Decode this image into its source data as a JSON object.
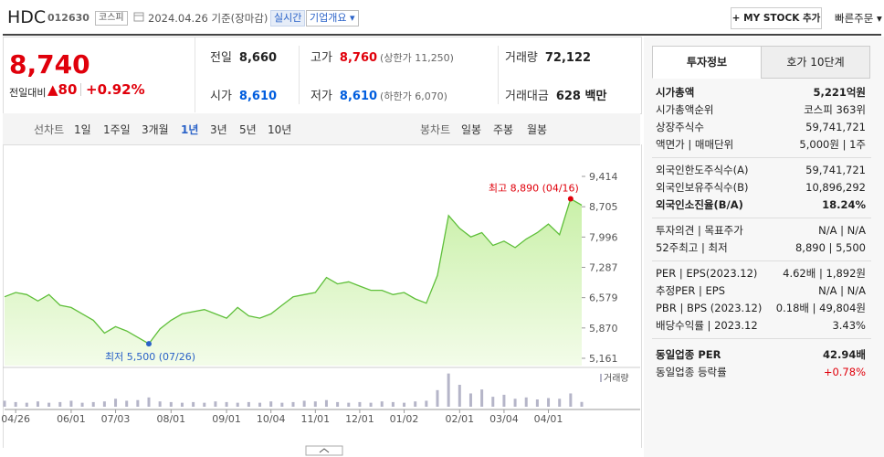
{
  "header": {
    "name": "HDC",
    "code": "012630",
    "market": "코스피",
    "date": "2024.04.26 기준(장마감)",
    "realtime": "실시간",
    "overview": "기업개요 ▾",
    "mystock": "+ MY STOCK 추가",
    "quick_order": "빠른주문 ▾"
  },
  "quote": {
    "price": "8,740",
    "change_label": "전일대비",
    "change": "▲80",
    "change_pct": "+0.92%",
    "rows": [
      [
        {
          "label": "전일",
          "value": "8,660"
        },
        {
          "label": "고가",
          "value": "8,760",
          "extra": "(상한가 11,250)"
        },
        {
          "label": "거래량",
          "value": "72,122"
        }
      ],
      [
        {
          "label": "시가",
          "value": "8,610"
        },
        {
          "label": "저가",
          "value": "8,610",
          "extra": "(하한가 6,070)"
        },
        {
          "label": "거래대금",
          "value": "628 백만"
        }
      ]
    ]
  },
  "periods": {
    "line_label": "선차트",
    "line": [
      "1일",
      "1주일",
      "3개월",
      "1년",
      "3년",
      "5년",
      "10년"
    ],
    "candle_label": "봉차트",
    "candle": [
      "일봉",
      "주봉",
      "월봉"
    ]
  },
  "info": {
    "tabs": [
      "투자정보",
      "호가 10단계"
    ],
    "groups": [
      [
        {
          "label": "시가총액",
          "value": "5,221억원"
        },
        {
          "label": "시가총액순위",
          "value": "코스피 363위"
        },
        {
          "label": "상장주식수",
          "value": "59,741,721"
        },
        {
          "label": "액면가 | 매매단위",
          "value": "5,000원 | 1주"
        }
      ],
      [
        {
          "label": "외국인한도주식수(A)",
          "value": "59,741,721"
        },
        {
          "label": "외국인보유주식수(B)",
          "value": "10,896,292"
        },
        {
          "label": "외국인소진율(B/A)",
          "value": "18.24%"
        }
      ],
      [
        {
          "label": "투자의견 | 목표주가",
          "value": "N/A | N/A"
        },
        {
          "label": "52주최고 | 최저",
          "value": "8,890 | 5,500"
        }
      ],
      [
        {
          "label": "PER | EPS(2023.12)",
          "value": "4.62배 | 1,892원"
        },
        {
          "label": "추정PER | EPS",
          "value": "N/A | N/A"
        },
        {
          "label": "PBR | BPS (2023.12)",
          "value": "0.18배 | 49,804원"
        },
        {
          "label": "배당수익률 | 2023.12",
          "value": "3.43%"
        }
      ],
      [
        {
          "label": "동일업종 PER",
          "value": "42.94배"
        },
        {
          "label": "동일업종 등락률",
          "value": "+0.78%"
        }
      ]
    ]
  },
  "chart_data": {
    "type": "line",
    "categories": [
      null,
      "04/26",
      null,
      null,
      null,
      null,
      "06/01",
      null,
      null,
      null,
      "07/03",
      null,
      null,
      null,
      null,
      "08/01",
      null,
      null,
      null,
      null,
      "09/01",
      null,
      null,
      null,
      "10/04",
      null,
      null,
      null,
      "11/01",
      null,
      null,
      null,
      "12/01",
      null,
      null,
      null,
      "01/02",
      null,
      null,
      null,
      null,
      "02/01",
      null,
      null,
      null,
      "03/04",
      null,
      null,
      null,
      "04/01",
      null,
      null,
      null
    ],
    "series": [
      {
        "color": "#5fbf3a",
        "values": [
          6600,
          6700,
          6650,
          6500,
          6650,
          6400,
          6350,
          6200,
          6050,
          5750,
          5900,
          5800,
          5650,
          5500,
          5850,
          6050,
          6200,
          6250,
          6300,
          6200,
          6100,
          6350,
          6150,
          6100,
          6200,
          6400,
          6600,
          6650,
          6700,
          7050,
          6900,
          6950,
          6850,
          6750,
          6750,
          6650,
          6700,
          6550,
          6450,
          7100,
          8500,
          8200,
          8000,
          8100,
          7800,
          7900,
          7750,
          7950,
          8100,
          8300,
          8050,
          8890,
          8740
        ]
      },
      {
        "name": "거래량",
        "type": "bar",
        "axis": "y2",
        "color": "#b5b5c8",
        "values": [
          90000,
          70000,
          60000,
          80000,
          60000,
          70000,
          90000,
          60000,
          70000,
          80000,
          120000,
          90000,
          100000,
          140000,
          80000,
          70000,
          60000,
          70000,
          60000,
          80000,
          70000,
          60000,
          70000,
          60000,
          80000,
          60000,
          70000,
          90000,
          80000,
          100000,
          70000,
          60000,
          70000,
          60000,
          80000,
          70000,
          60000,
          80000,
          90000,
          250000,
          500000,
          330000,
          200000,
          260000,
          150000,
          180000,
          120000,
          140000,
          110000,
          130000,
          120000,
          200000,
          72122
        ]
      }
    ],
    "ylim": [
      5161,
      9414
    ],
    "yticks": [
      {
        "value": 9414,
        "label": "9,414"
      },
      {
        "value": 8705,
        "label": "8,705"
      },
      {
        "value": 7996,
        "label": "7,996"
      },
      {
        "value": 7287,
        "label": "7,287"
      },
      {
        "value": 6579,
        "label": "6,579"
      },
      {
        "value": 5870,
        "label": "5,870"
      },
      {
        "value": 5161,
        "label": "5,161"
      }
    ],
    "y2lim": [
      0,
      550000
    ],
    "high_label": "최고 8,890 (04/16)",
    "low_label": "최저 5,500 (07/26)"
  }
}
